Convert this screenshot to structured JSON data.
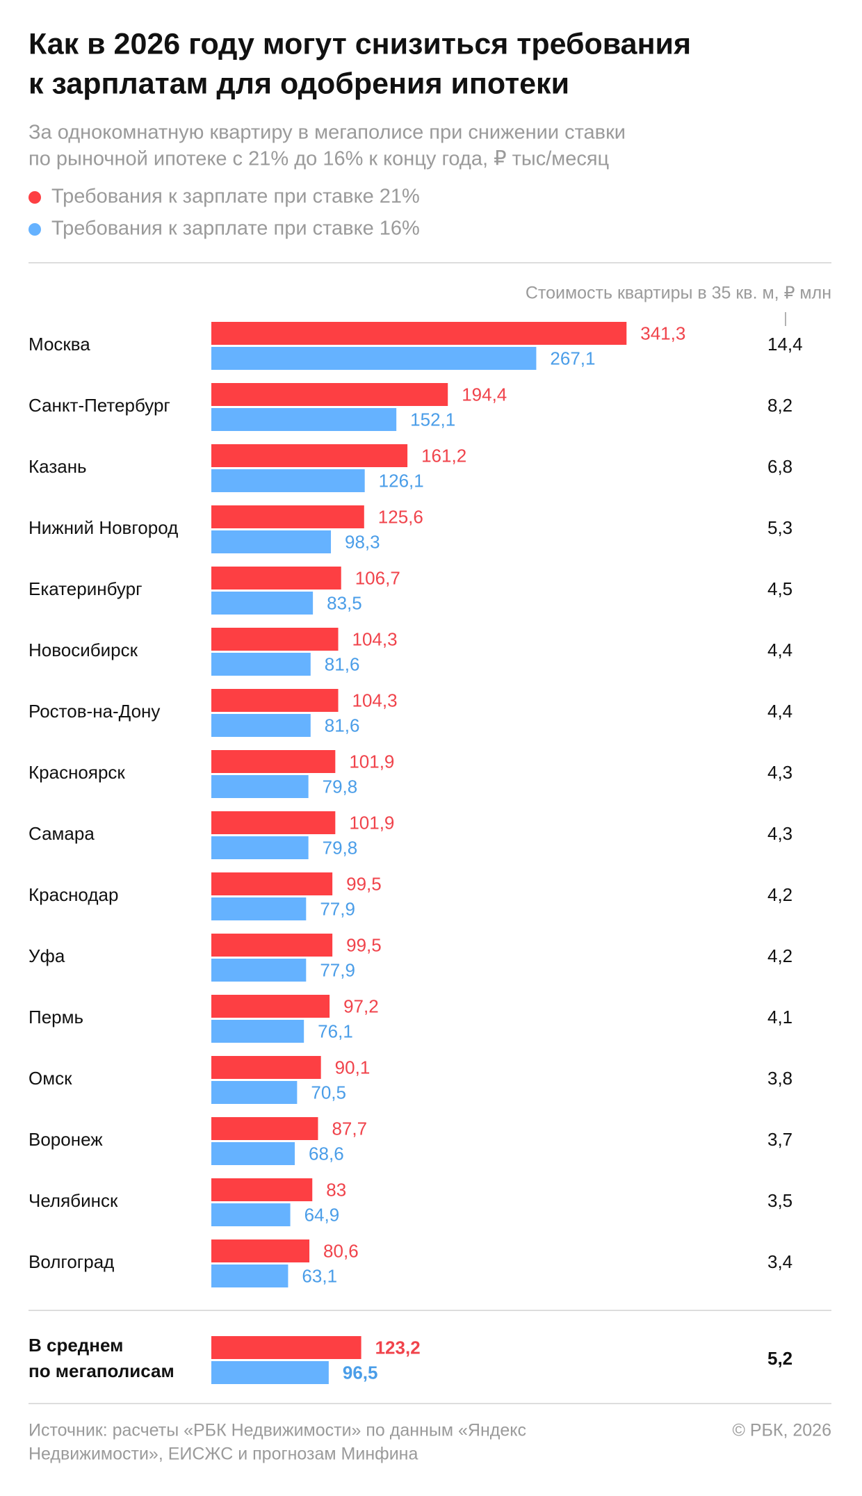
{
  "chart_data": {
    "type": "bar",
    "title_lines": [
      "Как в 2026 году могут снизиться требования",
      "к зарплатам для одобрения ипотеки"
    ],
    "subtitle_lines": [
      "За однокомнатную квартиру в мегаполисе при снижении ставки",
      "по рыночной ипотеке с 21% до 16% к концу года, ₽ тыс/месяц"
    ],
    "cost_header": "Стоимость квартиры в 35 кв. м, ₽ млн",
    "categories": [
      "Москва",
      "Санкт-Петербург",
      "Казань",
      "Нижний Новгород",
      "Екатеринбург",
      "Новосибирск",
      "Ростов-на-Дону",
      "Красноярск",
      "Самара",
      "Краснодар",
      "Уфа",
      "Пермь",
      "Омск",
      "Воронеж",
      "Челябинск",
      "Волгоград"
    ],
    "series": [
      {
        "name": "Требования к зарплате при ставке 21%",
        "color": "#fd3f43",
        "label_color": "#f0434b",
        "values": [
          341.3,
          194.4,
          161.2,
          125.6,
          106.7,
          104.3,
          104.3,
          101.9,
          101.9,
          99.5,
          99.5,
          97.2,
          90.1,
          87.7,
          83,
          80.6
        ],
        "value_labels": [
          "341,3",
          "194,4",
          "161,2",
          "125,6",
          "106,7",
          "104,3",
          "104,3",
          "101,9",
          "101,9",
          "99,5",
          "99,5",
          "97,2",
          "90,1",
          "87,7",
          "83",
          "80,6"
        ]
      },
      {
        "name": "Требования к зарплате при ставке 16%",
        "color": "#65b2ff",
        "label_color": "#4a9de8",
        "values": [
          267.1,
          152.1,
          126.1,
          98.3,
          83.5,
          81.6,
          81.6,
          79.8,
          79.8,
          77.9,
          77.9,
          76.1,
          70.5,
          68.6,
          64.9,
          63.1
        ],
        "value_labels": [
          "267,1",
          "152,1",
          "126,1",
          "98,3",
          "83,5",
          "81,6",
          "81,6",
          "79,8",
          "79,8",
          "77,9",
          "77,9",
          "76,1",
          "70,5",
          "68,6",
          "64,9",
          "63,1"
        ]
      }
    ],
    "costs": [
      "14,4",
      "8,2",
      "6,8",
      "5,3",
      "4,5",
      "4,4",
      "4,4",
      "4,3",
      "4,3",
      "4,2",
      "4,2",
      "4,1",
      "3,8",
      "3,7",
      "3,5",
      "3,4"
    ],
    "average": {
      "label_lines": [
        "В среднем",
        "по мегаполисам"
      ],
      "values": [
        123.2,
        96.5
      ],
      "value_labels": [
        "123,2",
        "96,5"
      ],
      "cost": "5,2"
    },
    "source_lines": [
      "Источник: расчеты «РБК Недвижимости» по данным «Яндекс",
      "Недвижимости», ЕИСЖС и прогнозам Минфина"
    ],
    "copyright": "© РБК, 2026"
  }
}
